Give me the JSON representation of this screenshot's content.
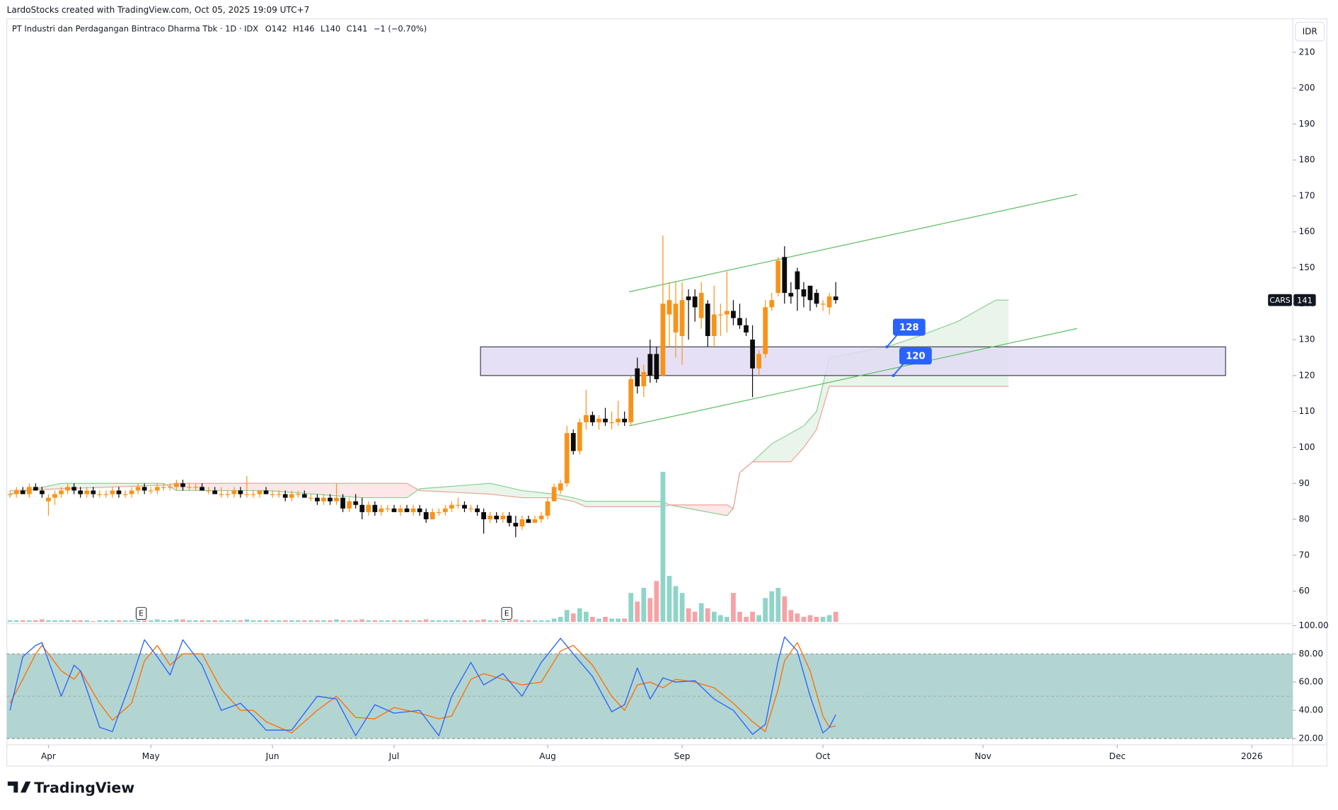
{
  "header": "LardoStocks created with TradingView.com, Oct 05, 2025 19:09 UTC+7",
  "footer_logo": "TradingView",
  "chart_data": {
    "type": "candlestick",
    "title": "PT Industri dan Perdagangan Bintraco Dharma Tbk · 1D · IDX",
    "legend_values": [
      "O142",
      "H146",
      "L140",
      "C141",
      "−1 (−0.70%)"
    ],
    "currency": "IDR",
    "symbol_tag": "CARS",
    "up_color": "#f7931a",
    "down_color": "#0b0b0b",
    "xlim": [
      -0.5,
      200.4
    ],
    "xticks": [
      {
        "value": 6,
        "label": "Apr"
      },
      {
        "value": 22,
        "label": "May"
      },
      {
        "value": 41,
        "label": "Jun"
      },
      {
        "value": 60,
        "label": "Jul"
      },
      {
        "value": 84,
        "label": "Aug"
      },
      {
        "value": 105,
        "label": "Sep"
      },
      {
        "value": 127,
        "label": "Oct"
      },
      {
        "value": 152,
        "label": "Nov"
      },
      {
        "value": 173,
        "label": "Dec"
      },
      {
        "value": 194,
        "label": "2026"
      }
    ],
    "ylim": [
      50,
      219.3
    ],
    "yticks": [
      60,
      70,
      80,
      90,
      100,
      110,
      120,
      130,
      140,
      150,
      160,
      170,
      180,
      190,
      200,
      210
    ],
    "grid": false,
    "open": [
      87,
      87,
      88,
      87,
      89,
      88,
      85,
      86,
      87,
      88,
      89,
      88,
      87,
      88,
      87,
      87,
      87,
      88,
      87,
      87,
      88,
      89,
      88,
      88,
      89,
      89,
      89,
      90,
      89,
      89,
      89,
      88,
      88,
      87,
      87,
      87,
      88,
      87,
      87,
      87,
      88,
      87,
      87,
      87,
      86,
      87,
      87,
      86,
      86,
      85,
      86,
      85,
      86,
      83,
      85,
      84,
      82,
      84,
      82,
      83,
      83,
      82,
      83,
      82,
      83,
      82,
      80,
      82,
      82,
      83,
      84,
      84,
      83,
      83,
      82,
      80,
      81,
      80,
      81,
      79,
      78,
      80,
      79,
      80,
      81,
      85,
      88,
      90,
      104,
      99,
      107,
      109,
      107,
      108,
      107,
      107,
      108,
      107,
      122,
      117,
      126,
      126,
      120,
      137,
      132,
      131,
      142,
      142,
      136,
      140,
      131,
      137,
      137,
      138,
      136,
      134,
      130,
      122,
      126,
      139,
      143,
      153,
      143,
      149,
      144,
      145,
      143,
      140,
      139,
      142
    ],
    "high": [
      88,
      89,
      89,
      90,
      90,
      89,
      87,
      88,
      89,
      90,
      90,
      89,
      89,
      89,
      88,
      88,
      89,
      89,
      88,
      89,
      90,
      90,
      89,
      90,
      90,
      90,
      91,
      91,
      90,
      90,
      90,
      89,
      89,
      89,
      88,
      89,
      89,
      92,
      88,
      88,
      89,
      88,
      88,
      88,
      88,
      88,
      88,
      87,
      87,
      87,
      87,
      90,
      87,
      86,
      87,
      86,
      85,
      85,
      84,
      84,
      84,
      84,
      84,
      84,
      84,
      83,
      83,
      83,
      84,
      85,
      86,
      85,
      84,
      84,
      83,
      82,
      82,
      82,
      82,
      81,
      81,
      81,
      81,
      82,
      86,
      90,
      91,
      106,
      105,
      108,
      116,
      110,
      109,
      111,
      110,
      113,
      110,
      120,
      125,
      123,
      130,
      128,
      159,
      146,
      146,
      146,
      144,
      144,
      146,
      141,
      145,
      140,
      149,
      141,
      140,
      136,
      134,
      127,
      141,
      143,
      153,
      156,
      146,
      150,
      146,
      145,
      144,
      141,
      143,
      146
    ],
    "low": [
      86,
      86,
      87,
      86,
      88,
      86,
      81,
      84,
      86,
      87,
      87,
      86,
      86,
      86,
      86,
      86,
      86,
      86,
      86,
      86,
      87,
      87,
      87,
      87,
      88,
      88,
      88,
      88,
      88,
      88,
      88,
      87,
      87,
      86,
      86,
      86,
      86,
      86,
      86,
      86,
      87,
      86,
      86,
      85,
      85,
      86,
      86,
      85,
      84,
      84,
      84,
      84,
      82,
      82,
      83,
      80,
      81,
      81,
      81,
      82,
      82,
      81,
      82,
      81,
      81,
      79,
      80,
      81,
      81,
      82,
      83,
      82,
      82,
      81,
      76,
      79,
      79,
      79,
      78,
      75,
      77,
      79,
      79,
      79,
      80,
      85,
      87,
      89,
      98,
      98,
      105,
      106,
      105,
      106,
      105,
      106,
      106,
      106,
      115,
      114,
      118,
      118,
      120,
      128,
      125,
      123,
      130,
      135,
      133,
      128,
      128,
      131,
      132,
      134,
      133,
      131,
      114,
      120,
      125,
      138,
      142,
      140,
      140,
      138,
      139,
      138,
      139,
      138,
      137,
      140
    ],
    "close": [
      87,
      88,
      87,
      89,
      88,
      87,
      86,
      87,
      88,
      89,
      88,
      87,
      88,
      87,
      87,
      87,
      88,
      87,
      87,
      88,
      89,
      88,
      88,
      89,
      89,
      89,
      90,
      89,
      89,
      89,
      88,
      88,
      87,
      87,
      87,
      88,
      87,
      87,
      87,
      88,
      87,
      87,
      87,
      86,
      87,
      87,
      86,
      86,
      85,
      86,
      85,
      86,
      83,
      85,
      84,
      82,
      84,
      82,
      83,
      83,
      82,
      83,
      82,
      83,
      82,
      80,
      82,
      82,
      83,
      84,
      84,
      83,
      83,
      82,
      80,
      81,
      80,
      81,
      79,
      78,
      80,
      79,
      80,
      81,
      85,
      89,
      90,
      104,
      99,
      107,
      109,
      107,
      108,
      107,
      107,
      108,
      107,
      119,
      117,
      121,
      120,
      119,
      140,
      141,
      140,
      141,
      141,
      139,
      143,
      131,
      137,
      137,
      138,
      136,
      134,
      132,
      122,
      126,
      139,
      141,
      152,
      143,
      142,
      144,
      142,
      141,
      140,
      140,
      142,
      141
    ],
    "volume": {
      "ylim": [
        0,
        100
      ],
      "up_color": "#8fd4c9",
      "down_color": "#f5a3a6",
      "values": [
        1,
        1,
        1,
        1,
        1,
        1.5,
        1,
        1,
        1,
        1,
        1,
        1,
        1,
        0.5,
        1,
        1,
        1,
        1,
        1,
        1,
        1,
        1,
        1,
        1.5,
        1,
        1,
        1.5,
        1.5,
        1,
        1,
        1,
        1,
        1,
        1,
        1,
        1,
        1,
        1.5,
        1,
        1,
        1,
        1,
        1,
        1,
        1,
        1,
        1,
        1,
        1,
        1,
        1,
        1.5,
        1,
        1,
        1,
        1.5,
        1,
        1,
        1,
        1,
        1,
        1,
        1,
        1,
        1,
        1.5,
        1,
        1,
        1,
        1,
        1,
        1,
        1,
        1,
        1.5,
        1,
        1,
        1,
        1,
        1.5,
        1,
        1,
        1,
        1,
        1,
        2,
        3,
        7,
        5,
        8,
        6,
        3,
        2,
        3,
        2,
        2,
        2,
        17,
        12,
        20,
        14,
        24,
        88,
        27,
        21,
        17,
        8,
        6,
        11,
        8,
        6,
        4,
        3,
        17,
        6,
        3,
        6,
        4,
        14,
        18,
        20,
        15,
        7,
        5,
        3,
        4,
        3,
        3,
        4,
        6
      ]
    },
    "earnings": {
      "x": [
        20.5,
        77.6
      ],
      "label": "E"
    },
    "cloud": {
      "x": [
        0,
        8,
        24,
        26,
        40,
        55,
        62,
        64,
        75,
        80,
        85,
        88,
        90,
        102,
        103,
        112,
        113,
        114,
        116,
        119,
        122,
        124,
        126,
        128,
        137,
        142,
        148,
        152,
        154,
        156
      ],
      "span_a": [
        87,
        90,
        90,
        88,
        88,
        86,
        86,
        88.5,
        90,
        88,
        87,
        86,
        85,
        85,
        84,
        81,
        83,
        93,
        96,
        101,
        104,
        106,
        110,
        125,
        128,
        131,
        135,
        139,
        141,
        141
      ],
      "span_b": [
        88,
        88.5,
        89.5,
        90,
        90,
        90,
        90,
        88,
        87,
        86,
        86,
        85,
        83.5,
        83.5,
        84,
        84,
        83,
        93,
        96,
        96,
        96,
        100,
        105,
        117,
        117,
        117,
        117,
        117,
        117,
        117
      ],
      "a_color": "#8ccf95",
      "b_color": "#f0a09a"
    },
    "zone": {
      "x": [
        73.5,
        189.9
      ],
      "y": [
        120,
        128
      ],
      "color": "#e2daf4"
    },
    "channel_upper": {
      "x": [
        96.7,
        166.7
      ],
      "y": [
        143.3,
        170.4
      ],
      "color": "#5cbf5f"
    },
    "channel_lower": {
      "x": [
        96.7,
        166.7
      ],
      "y": [
        106,
        133.1
      ],
      "color": "#5cbf5f"
    },
    "price_notes": [
      {
        "x": 137,
        "value": 128
      },
      {
        "x": 138,
        "value": 120
      }
    ],
    "stoch": {
      "ylim": [
        18,
        102
      ],
      "yticks": [
        {
          "value": 100,
          "label": "100.00"
        },
        {
          "value": 80,
          "label": "80.00"
        },
        {
          "value": 60,
          "label": "60.00"
        },
        {
          "value": 40,
          "label": "40.00"
        },
        {
          "value": 20,
          "label": "20.00"
        }
      ],
      "band": [
        20,
        80
      ],
      "midline": 50,
      "band_color": "#b3d5d1",
      "x": [
        0,
        2,
        4,
        5,
        8,
        10,
        11,
        14,
        16,
        19,
        21,
        23,
        25,
        27,
        30,
        33,
        36,
        38,
        40,
        44,
        48,
        51,
        54,
        57,
        60,
        64,
        67,
        69,
        72,
        74,
        77,
        80,
        83,
        86,
        88,
        91,
        94,
        96,
        98,
        100,
        102,
        104,
        107,
        110,
        113,
        116,
        118,
        120,
        121,
        123,
        125,
        127,
        128,
        129
      ],
      "k": [
        40,
        78,
        86,
        88,
        50,
        72,
        68,
        28,
        25,
        62,
        90,
        78,
        65,
        90,
        72,
        40,
        45,
        36,
        26,
        26,
        50,
        48,
        22,
        44,
        38,
        40,
        22,
        50,
        74,
        58,
        66,
        50,
        74,
        91,
        80,
        64,
        39,
        44,
        70,
        48,
        63,
        60,
        61,
        48,
        40,
        23,
        30,
        75,
        92,
        82,
        50,
        24,
        28,
        37
      ],
      "d": [
        45,
        62,
        80,
        86,
        68,
        62,
        68,
        45,
        33,
        45,
        75,
        86,
        72,
        80,
        80,
        55,
        40,
        40,
        32,
        24,
        40,
        50,
        35,
        34,
        42,
        38,
        34,
        36,
        62,
        66,
        62,
        58,
        60,
        82,
        86,
        72,
        50,
        40,
        58,
        60,
        56,
        62,
        60,
        56,
        45,
        32,
        25,
        55,
        75,
        88,
        68,
        36,
        28,
        29
      ],
      "k_color": "#2962ff",
      "d_color": "#ff6d00"
    }
  }
}
